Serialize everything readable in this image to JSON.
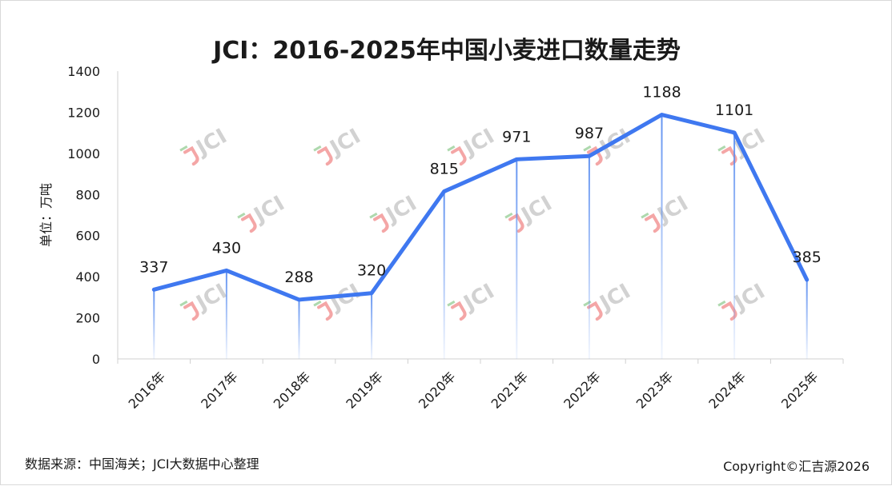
{
  "chart_data": {
    "type": "line",
    "title": "JCI：2016-2025年中国小麦进口数量走势",
    "ylabel": "单位：万吨",
    "categories": [
      "2016年",
      "2017年",
      "2018年",
      "2019年",
      "2020年",
      "2021年",
      "2022年",
      "2023年",
      "2024年",
      "2025年"
    ],
    "series": [
      {
        "values": [
          337,
          430,
          288,
          320,
          815,
          971,
          987,
          1188,
          1101,
          385
        ]
      }
    ],
    "ylim": [
      0,
      1400
    ],
    "yticks": [
      "0",
      "200",
      "400",
      "600",
      "800",
      "1000",
      "1200",
      "1400"
    ],
    "grid": false,
    "line_color": "#3f78f0",
    "drop_line_color": "#6f9cf0"
  },
  "watermark": {
    "text": "JCI",
    "colors": {
      "mark_red": "#f08080",
      "mark_green": "#8cc98c",
      "text_gray": "#c8c8c8"
    }
  },
  "footer": {
    "source": "数据来源：中国海关；JCI大数据中心整理",
    "copyright": "Copyright©汇吉源2026"
  }
}
